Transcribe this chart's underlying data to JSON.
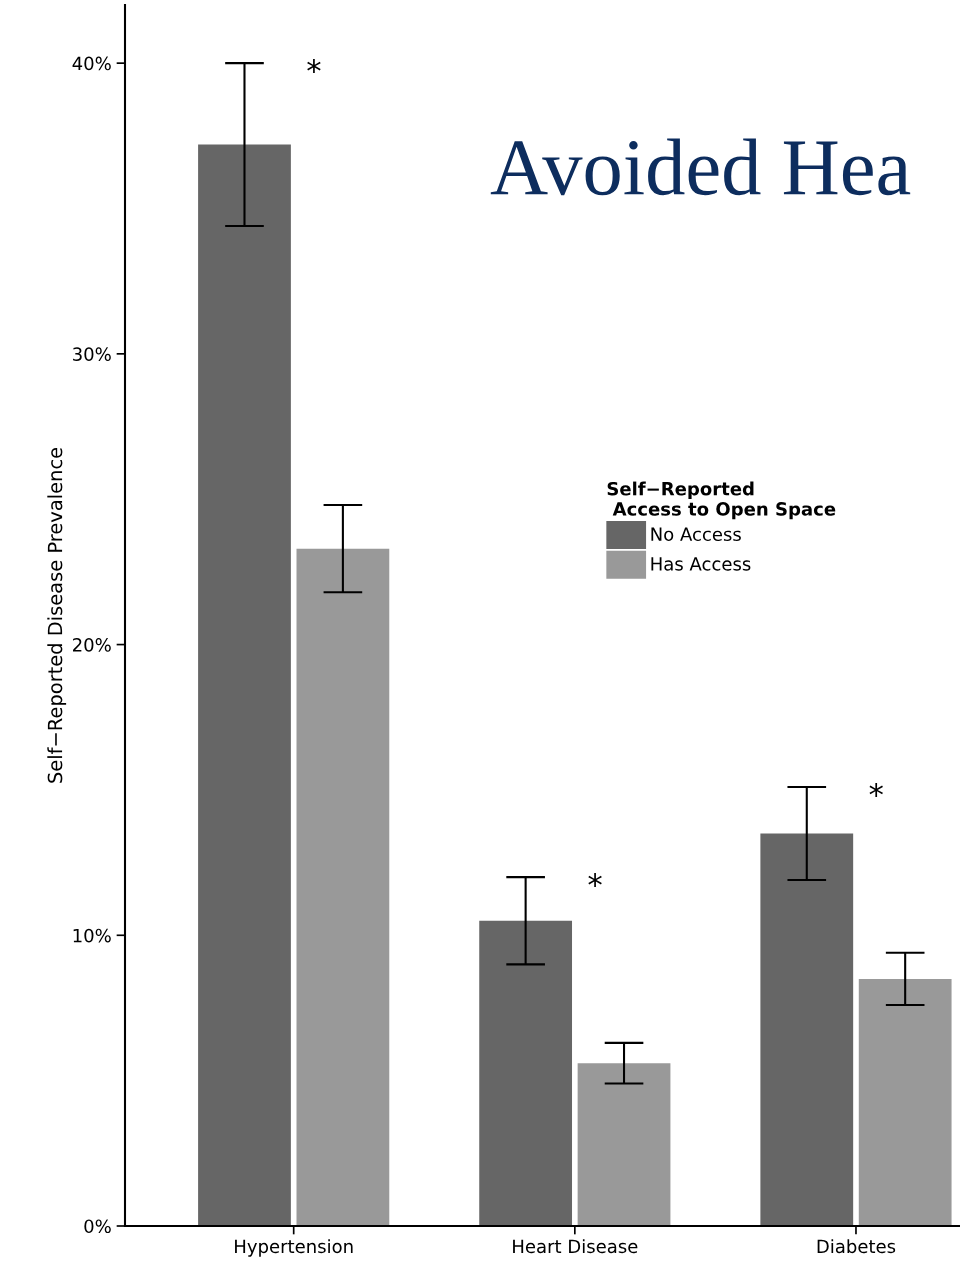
{
  "chart_data": {
    "type": "bar",
    "title": "Avoided Hea",
    "ylabel": "Self−Reported Disease Prevalence",
    "legend_title": "Self−Reported\n Access to Open Space",
    "categories": [
      "Hypertension",
      "Heart Disease",
      "Diabetes"
    ],
    "series": [
      {
        "name": "No Access",
        "color": "#666666",
        "values": [
          37.2,
          10.5,
          13.5
        ],
        "errors": [
          [
            34.4,
            40.0
          ],
          [
            9.0,
            12.0
          ],
          [
            11.9,
            15.1
          ]
        ]
      },
      {
        "name": "Has Access",
        "color": "#999999",
        "values": [
          23.3,
          5.6,
          8.5
        ],
        "errors": [
          [
            21.8,
            24.8
          ],
          [
            4.9,
            6.3
          ],
          [
            7.6,
            9.4
          ]
        ]
      }
    ],
    "ylim": [
      0,
      42
    ],
    "yticks": [
      {
        "value": 0,
        "label": "0%"
      },
      {
        "value": 10,
        "label": "10%"
      },
      {
        "value": 20,
        "label": "20%"
      },
      {
        "value": 30,
        "label": "30%"
      },
      {
        "value": 40,
        "label": "40%"
      }
    ],
    "annotations": [
      "*",
      "*",
      "*"
    ],
    "legend": "right",
    "grid": false
  }
}
